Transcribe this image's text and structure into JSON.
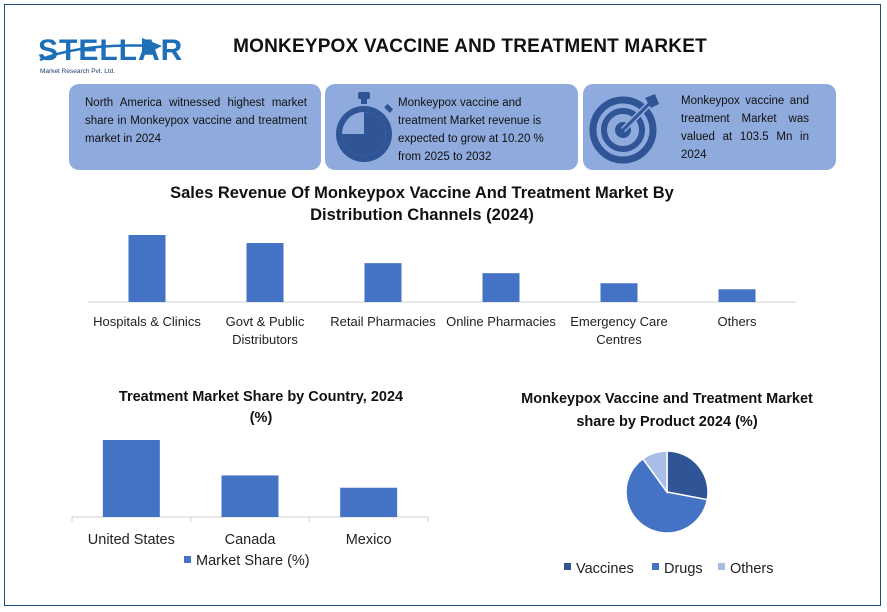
{
  "logo": {
    "word": "STELLAR",
    "sub": "Market Research Pvt. Ltd."
  },
  "header": {
    "title": "MONKEYPOX VACCINE AND TREATMENT MARKET"
  },
  "info_boxes": [
    {
      "text": "North America witnessed highest market share in Monkeypox vaccine and treatment market in 2024",
      "icon": ""
    },
    {
      "text": "Monkeypox vaccine and treatment Market revenue is expected to grow at 10.20 % from 2025 to 2032",
      "icon": "stopwatch-icon"
    },
    {
      "text": "Monkeypox vaccine and treatment Market was valued at 103.5 Mn in 2024",
      "icon": "target-icon"
    }
  ],
  "colors": {
    "bar": "#4472c4",
    "box": "#8faadc",
    "icon": "#2f5597",
    "vaccines": "#2f5597",
    "drugs": "#4472c4",
    "others": "#a9bde6"
  },
  "chart_data": [
    {
      "type": "bar",
      "title": "Sales Revenue Of Monkeypox Vaccine And Treatment Market By Distribution Channels (2024)",
      "title_lines": [
        "Sales Revenue Of Monkeypox Vaccine And Treatment Market By",
        "Distribution Channels (2024)"
      ],
      "categories": [
        "Hospitals & Clinics",
        "Govt & Public Distributors",
        "Retail Pharmacies",
        "Online Pharmacies",
        "Emergency Care Centres",
        "Others"
      ],
      "category_lines": [
        [
          "Hospitals & Clinics"
        ],
        [
          "Govt & Public",
          "Distributors"
        ],
        [
          "Retail Pharmacies"
        ],
        [
          "Online Pharmacies"
        ],
        [
          "Emergency Care",
          "Centres"
        ],
        [
          "Others"
        ]
      ],
      "values": [
        100,
        88,
        58,
        43,
        28,
        19
      ],
      "ylim": [
        0,
        100
      ],
      "grid": false,
      "legend": "none"
    },
    {
      "type": "bar",
      "title": "Treatment Market Share by Country, 2024 (%)",
      "title_lines": [
        "Treatment Market Share by Country, 2024",
        "(%)"
      ],
      "categories": [
        "United States",
        "Canada",
        "Mexico"
      ],
      "series": [
        {
          "name": "Market Share (%)",
          "values": [
            100,
            54,
            38
          ]
        }
      ],
      "ylim": [
        0,
        100
      ],
      "grid": false,
      "legend": "bottom"
    },
    {
      "type": "pie",
      "title": "Monkeypox Vaccine and Treatment Market share by Product 2024 (%)",
      "title_lines": [
        "Monkeypox Vaccine and Treatment Market",
        "share by Product 2024 (%)"
      ],
      "categories": [
        "Vaccines",
        "Drugs",
        "Others"
      ],
      "values": [
        28,
        62,
        10
      ],
      "legend": "bottom"
    }
  ]
}
